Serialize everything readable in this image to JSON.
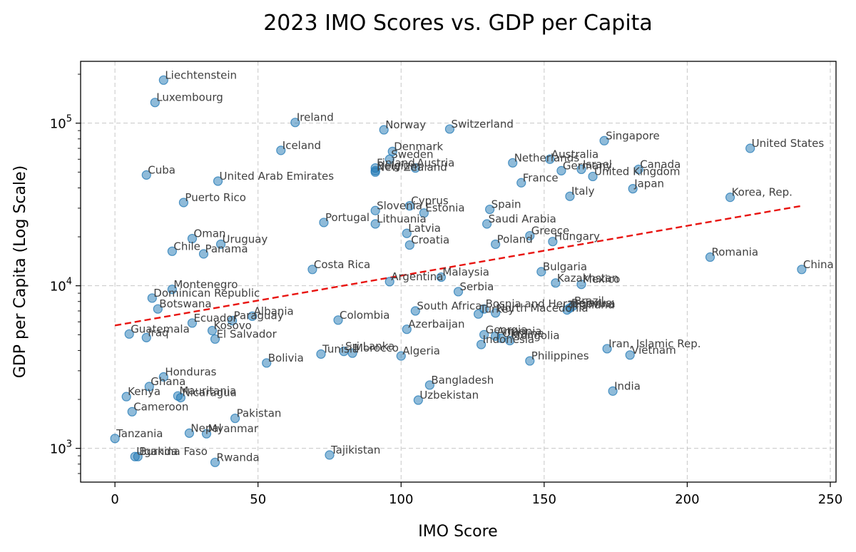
{
  "chart_data": {
    "type": "scatter",
    "title": "2023 IMO Scores vs. GDP per Capita",
    "xlabel": "IMO Score",
    "ylabel": "GDP per Capita (Log Scale)",
    "xlim": [
      -12,
      252
    ],
    "ylim": [
      620,
      240000
    ],
    "y_scale": "log",
    "grid": true,
    "x_ticks": [
      0,
      50,
      100,
      150,
      200,
      250
    ],
    "y_ticks": [
      {
        "value": 1000,
        "base": "10",
        "exp": "3"
      },
      {
        "value": 10000,
        "base": "10",
        "exp": "4"
      },
      {
        "value": 100000,
        "base": "10",
        "exp": "5"
      }
    ],
    "point_color": "#1f77b4",
    "trend_color": "#e8130f",
    "trendline": {
      "x": [
        0,
        240
      ],
      "y": [
        5700,
        31000
      ]
    },
    "points": [
      {
        "label": "Liechtenstein",
        "x": 17,
        "y": 184000
      },
      {
        "label": "Luxembourg",
        "x": 14,
        "y": 134000
      },
      {
        "label": "Ireland",
        "x": 63,
        "y": 101000
      },
      {
        "label": "Norway",
        "x": 94,
        "y": 91000
      },
      {
        "label": "Switzerland",
        "x": 117,
        "y": 92000
      },
      {
        "label": "Iceland",
        "x": 58,
        "y": 68000
      },
      {
        "label": "Denmark",
        "x": 97,
        "y": 67000
      },
      {
        "label": "Sweden",
        "x": 96,
        "y": 60000
      },
      {
        "label": "Finland",
        "x": 91,
        "y": 53000
      },
      {
        "label": "Austria",
        "x": 105,
        "y": 53000
      },
      {
        "label": "Belgium",
        "x": 91,
        "y": 51000
      },
      {
        "label": "New Zealand",
        "x": 91,
        "y": 50000
      },
      {
        "label": "Cuba",
        "x": 11,
        "y": 48000
      },
      {
        "label": "United Arab Emirates",
        "x": 36,
        "y": 44000
      },
      {
        "label": "Netherlands",
        "x": 139,
        "y": 57000
      },
      {
        "label": "Australia",
        "x": 152,
        "y": 60000
      },
      {
        "label": "Germany",
        "x": 156,
        "y": 51000
      },
      {
        "label": "Israel",
        "x": 163,
        "y": 52000
      },
      {
        "label": "Singapore",
        "x": 171,
        "y": 78000
      },
      {
        "label": "Canada",
        "x": 183,
        "y": 52000
      },
      {
        "label": "United Kingdom",
        "x": 167,
        "y": 47000
      },
      {
        "label": "France",
        "x": 142,
        "y": 43000
      },
      {
        "label": "Japan",
        "x": 181,
        "y": 39500
      },
      {
        "label": "United States",
        "x": 222,
        "y": 70000
      },
      {
        "label": "Puerto Rico",
        "x": 24,
        "y": 32500
      },
      {
        "label": "Italy",
        "x": 159,
        "y": 35500
      },
      {
        "label": "Korea, Rep.",
        "x": 215,
        "y": 35000
      },
      {
        "label": "Cyprus",
        "x": 103,
        "y": 31000
      },
      {
        "label": "Slovenia",
        "x": 91,
        "y": 29000
      },
      {
        "label": "Estonia",
        "x": 108,
        "y": 28000
      },
      {
        "label": "Spain",
        "x": 131,
        "y": 29500
      },
      {
        "label": "Portugal",
        "x": 73,
        "y": 24500
      },
      {
        "label": "Lithuania",
        "x": 91,
        "y": 24000
      },
      {
        "label": "Saudi Arabia",
        "x": 130,
        "y": 24000
      },
      {
        "label": "Latvia",
        "x": 102,
        "y": 21000
      },
      {
        "label": "Greece",
        "x": 145,
        "y": 20300
      },
      {
        "label": "Oman",
        "x": 27,
        "y": 19500
      },
      {
        "label": "Uruguay",
        "x": 37,
        "y": 18000
      },
      {
        "label": "Croatia",
        "x": 103,
        "y": 17800
      },
      {
        "label": "Poland",
        "x": 133,
        "y": 18000
      },
      {
        "label": "Hungary",
        "x": 153,
        "y": 18700
      },
      {
        "label": "Chile",
        "x": 20,
        "y": 16300
      },
      {
        "label": "Panama",
        "x": 31,
        "y": 15700
      },
      {
        "label": "Romania",
        "x": 208,
        "y": 15000
      },
      {
        "label": "Costa Rica",
        "x": 69,
        "y": 12600
      },
      {
        "label": "Bulgaria",
        "x": 149,
        "y": 12200
      },
      {
        "label": "China",
        "x": 240,
        "y": 12600
      },
      {
        "label": "Malaysia",
        "x": 114,
        "y": 11300
      },
      {
        "label": "Argentina",
        "x": 96,
        "y": 10600
      },
      {
        "label": "Kazakhstan",
        "x": 154,
        "y": 10400
      },
      {
        "label": "Mexico",
        "x": 163,
        "y": 10200
      },
      {
        "label": "Montenegro",
        "x": 20,
        "y": 9500
      },
      {
        "label": "Serbia",
        "x": 120,
        "y": 9200
      },
      {
        "label": "Dominican Republic",
        "x": 13,
        "y": 8400
      },
      {
        "label": "Botswana",
        "x": 15,
        "y": 7200
      },
      {
        "label": "South Africa",
        "x": 105,
        "y": 7000
      },
      {
        "label": "Bosnia and Herzegovina",
        "x": 129,
        "y": 7200
      },
      {
        "label": "Brazil",
        "x": 160,
        "y": 7500
      },
      {
        "label": "Belarus",
        "x": 159,
        "y": 7300
      },
      {
        "label": "Thailand",
        "x": 158,
        "y": 7100
      },
      {
        "label": "Turkey",
        "x": 127,
        "y": 6700
      },
      {
        "label": "North Macedonia",
        "x": 133,
        "y": 6800
      },
      {
        "label": "Albania",
        "x": 48,
        "y": 6500
      },
      {
        "label": "Paraguay",
        "x": 41,
        "y": 6100
      },
      {
        "label": "Colombia",
        "x": 78,
        "y": 6150
      },
      {
        "label": "Ecuador",
        "x": 27,
        "y": 5900
      },
      {
        "label": "Azerbaijan",
        "x": 102,
        "y": 5400
      },
      {
        "label": "Kosovo",
        "x": 34,
        "y": 5300
      },
      {
        "label": "Guatemala",
        "x": 5,
        "y": 5050
      },
      {
        "label": "Iraq",
        "x": 11,
        "y": 4800
      },
      {
        "label": "El Salvador",
        "x": 35,
        "y": 4700
      },
      {
        "label": "Georgia",
        "x": 129,
        "y": 5000
      },
      {
        "label": "Armenia",
        "x": 133,
        "y": 4900
      },
      {
        "label": "Ukraine",
        "x": 135,
        "y": 4750
      },
      {
        "label": "Mongolia",
        "x": 138,
        "y": 4600
      },
      {
        "label": "Indonesia",
        "x": 128,
        "y": 4350
      },
      {
        "label": "Iran, Islamic Rep.",
        "x": 172,
        "y": 4100
      },
      {
        "label": "Sri Lanka",
        "x": 80,
        "y": 3950
      },
      {
        "label": "Tunisia",
        "x": 72,
        "y": 3800
      },
      {
        "label": "Morocco",
        "x": 83,
        "y": 3850
      },
      {
        "label": "Algeria",
        "x": 100,
        "y": 3700
      },
      {
        "label": "Vietnam",
        "x": 180,
        "y": 3750
      },
      {
        "label": "Bolivia",
        "x": 53,
        "y": 3350
      },
      {
        "label": "Philippines",
        "x": 145,
        "y": 3450
      },
      {
        "label": "Honduras",
        "x": 17,
        "y": 2750
      },
      {
        "label": "Ghana",
        "x": 12,
        "y": 2400
      },
      {
        "label": "Bangladesh",
        "x": 110,
        "y": 2450
      },
      {
        "label": "India",
        "x": 174,
        "y": 2250
      },
      {
        "label": "Mauritania",
        "x": 22,
        "y": 2100
      },
      {
        "label": "Nicaragua",
        "x": 23,
        "y": 2050
      },
      {
        "label": "Kenya",
        "x": 4,
        "y": 2080
      },
      {
        "label": "Uzbekistan",
        "x": 106,
        "y": 1980
      },
      {
        "label": "Cameroon",
        "x": 6,
        "y": 1680
      },
      {
        "label": "Pakistan",
        "x": 42,
        "y": 1530
      },
      {
        "label": "Nepal",
        "x": 26,
        "y": 1240
      },
      {
        "label": "Myanmar",
        "x": 32,
        "y": 1230
      },
      {
        "label": "Tanzania",
        "x": 0,
        "y": 1150
      },
      {
        "label": "Tajikistan",
        "x": 75,
        "y": 910
      },
      {
        "label": "Uganda",
        "x": 7,
        "y": 890
      },
      {
        "label": "Burkina Faso",
        "x": 8,
        "y": 890
      },
      {
        "label": "Rwanda",
        "x": 35,
        "y": 820
      }
    ]
  }
}
